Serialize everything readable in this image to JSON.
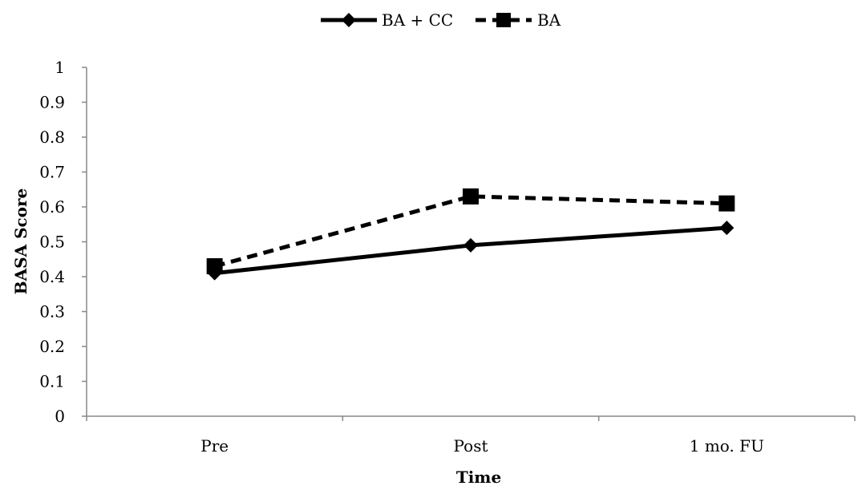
{
  "chart_data": {
    "type": "line",
    "title": "",
    "xlabel": "Time",
    "ylabel": "BASA Score",
    "categories": [
      "Pre",
      "Post",
      "1 mo. FU"
    ],
    "ylim": [
      0,
      1
    ],
    "yticks": [
      "0",
      "0.1",
      "0.2",
      "0.3",
      "0.4",
      "0.5",
      "0.6",
      "0.7",
      "0.8",
      "0.9",
      "1"
    ],
    "grid": false,
    "legend_position": "top-center",
    "series": [
      {
        "name": "BA + CC",
        "values": [
          0.41,
          0.49,
          0.54
        ],
        "line_style": "solid",
        "marker": "diamond",
        "color": "#000000"
      },
      {
        "name": "BA",
        "values": [
          0.43,
          0.63,
          0.61
        ],
        "line_style": "dashed",
        "marker": "square",
        "color": "#000000"
      }
    ]
  }
}
